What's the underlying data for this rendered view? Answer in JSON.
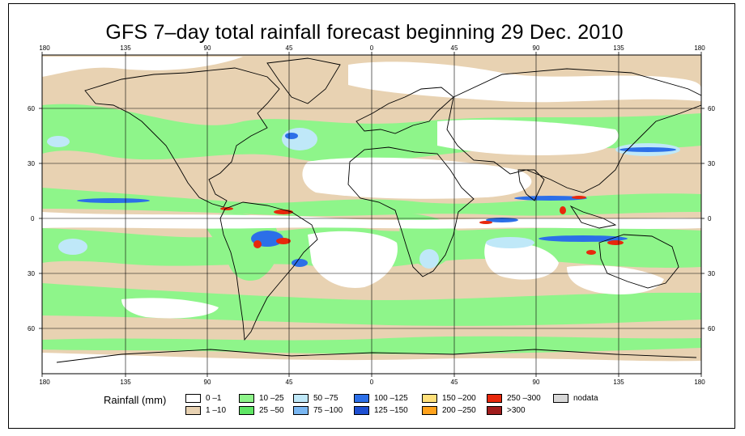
{
  "title": "GFS 7–day total rainfall forecast beginning 29 Dec. 2010",
  "map": {
    "type": "world rainfall map",
    "lon_ticks_top": [
      "180",
      "135",
      "90",
      "45",
      "0",
      "45",
      "90",
      "135",
      "180"
    ],
    "lon_ticks_bottom": [
      "180",
      "135",
      "90",
      "45",
      "0",
      "45",
      "90",
      "135",
      "180"
    ],
    "lat_ticks_left": [
      "60",
      "30",
      "0",
      "30",
      "60"
    ],
    "lat_ticks_right": [
      "60",
      "30",
      "0",
      "30",
      "60"
    ],
    "colors": {
      "ocean_dry": "#ffffff",
      "light": "#e8d2b2",
      "moderate": "#8ef58a",
      "heavy": "#bfe8f8",
      "very_heavy": "#1f5ee0",
      "extreme": "#e83a10"
    }
  },
  "legend": {
    "title": "Rainfall (mm)",
    "items": [
      {
        "label": "0 –1",
        "color": "#ffffff"
      },
      {
        "label": "1 –10",
        "color": "#e8d2b2"
      },
      {
        "label": "10 –25",
        "color": "#8ef58a"
      },
      {
        "label": "25 –50",
        "color": "#5fe664"
      },
      {
        "label": "50 –75",
        "color": "#bfe8f8"
      },
      {
        "label": "75 –100",
        "color": "#7ab7f2"
      },
      {
        "label": "100 –125",
        "color": "#2c6fe8"
      },
      {
        "label": "125 –150",
        "color": "#1e4fd1"
      },
      {
        "label": "150 –200",
        "color": "#ffe07a"
      },
      {
        "label": "200 –250",
        "color": "#ffa21c"
      },
      {
        "label": "250 –300",
        "color": "#e8280c"
      },
      {
        "label": ">300",
        "color": "#a01c1c"
      },
      {
        "label": "nodata",
        "color": "#d8d8d8"
      }
    ]
  }
}
